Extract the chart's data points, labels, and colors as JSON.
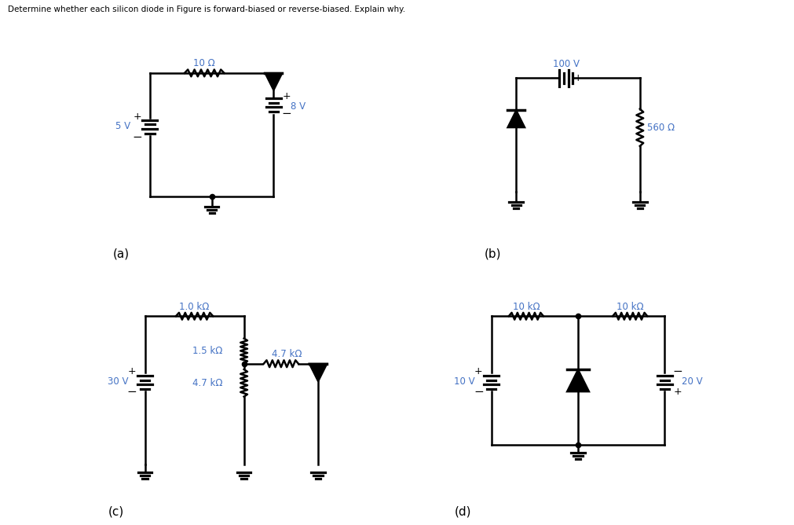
{
  "title": "Determine whether each silicon diode in Figure is forward-biased or reverse-biased. Explain why.",
  "title_color": "#000000",
  "title_fontsize": 7.5,
  "background_color": "#ffffff",
  "line_color": "#000000",
  "label_color": "#4472c4",
  "circuits": {
    "a": {
      "label": "(a)",
      "battery1_voltage": "5 V",
      "resistor_label": "10 Ω",
      "battery2_voltage": "8 V"
    },
    "b": {
      "label": "(b)",
      "battery_voltage": "100 V",
      "resistor_label": "560 Ω"
    },
    "c": {
      "label": "(c)",
      "battery_voltage": "30 V",
      "r1_label": "1.0 kΩ",
      "r2_label": "1.5 kΩ",
      "r3_label": "4.7 kΩ",
      "r4_label": "4.7 kΩ"
    },
    "d": {
      "label": "(d)",
      "battery1_voltage": "10 V",
      "battery2_voltage": "20 V",
      "r1_label": "10 kΩ",
      "r2_label": "10 kΩ"
    }
  }
}
